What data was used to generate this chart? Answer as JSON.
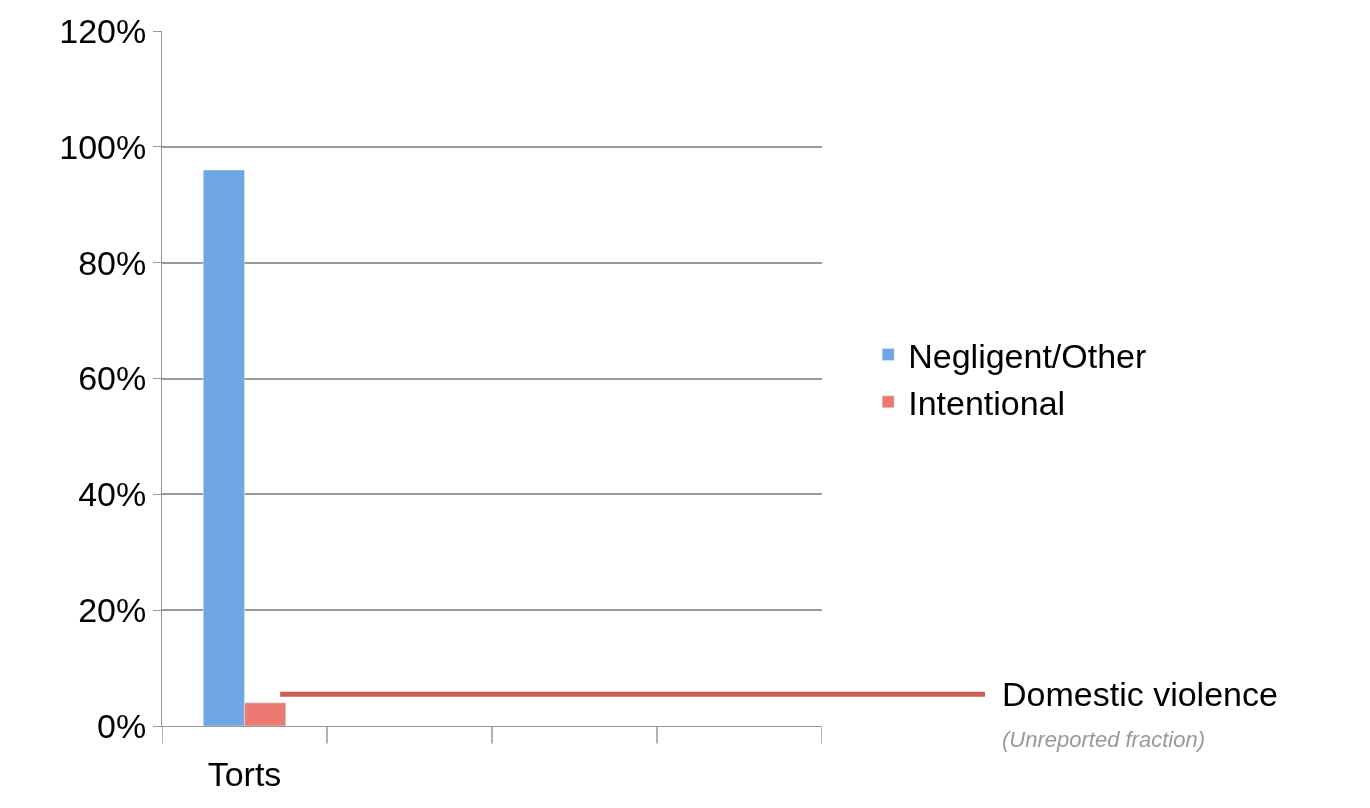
{
  "chart_data": {
    "type": "bar",
    "categories": [
      "Torts",
      null,
      null,
      null
    ],
    "series": [
      {
        "name": "Negligent/Other",
        "color": "#6fa6e6",
        "values": [
          96,
          null,
          null,
          null
        ]
      },
      {
        "name": "Intentional",
        "color": "#ea7a72",
        "values": [
          4,
          null,
          null,
          null
        ]
      }
    ],
    "ylim": [
      0,
      120
    ],
    "yticks": [
      {
        "value": 0,
        "label": "0%"
      },
      {
        "value": 20,
        "label": "20%"
      },
      {
        "value": 40,
        "label": "40%"
      },
      {
        "value": 60,
        "label": "60%"
      },
      {
        "value": 80,
        "label": "80%"
      },
      {
        "value": 100,
        "label": "100%"
      },
      {
        "value": 120,
        "label": "120%"
      }
    ],
    "ref_lines": [
      {
        "axis": "y",
        "value": 5.5,
        "label": "Domestic violence",
        "color": "#cd5f5a"
      }
    ],
    "annotations": [
      "(Unreported fraction)"
    ],
    "grid": "y",
    "legend": "right"
  }
}
